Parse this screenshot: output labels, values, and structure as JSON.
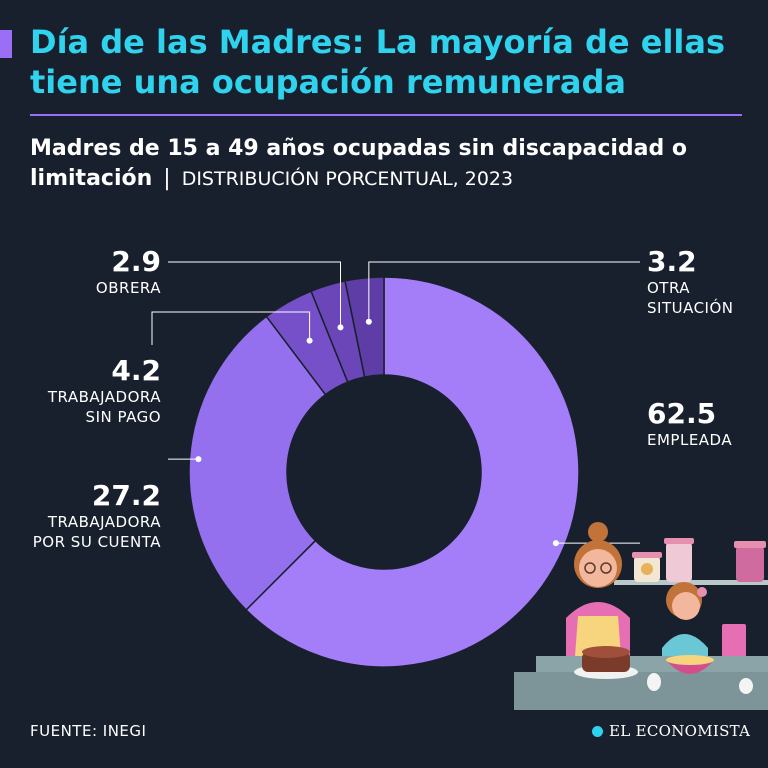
{
  "header": {
    "title": "Día de las Madres: La mayoría de ellas tiene una ocupación remunerada",
    "subtitle_bold": "Madres de 15 a 49 años ocupadas sin discapacidad o limitación",
    "separator": "|",
    "subtitle_light": "DISTRIBUCIÓN PORCENTUAL, 2023"
  },
  "chart_data": {
    "type": "pie",
    "variant": "donut",
    "title": "Madres de 15 a 49 años ocupadas sin discapacidad o limitación",
    "unit": "DISTRIBUCIÓN PORCENTUAL, 2023",
    "slices": [
      {
        "label": "EMPLEADA",
        "value": 62.5,
        "display": "62.5",
        "color": "#a47ef8"
      },
      {
        "label": "TRABAJADORA\nPOR SU CUENTA",
        "value": 27.2,
        "display": "27.2",
        "color": "#9570ee"
      },
      {
        "label": "TRABAJADORA\nSIN PAGO",
        "value": 4.2,
        "display": "4.2",
        "color": "#7550c8"
      },
      {
        "label": "OBRERA",
        "value": 2.9,
        "display": "2.9",
        "color": "#6a46b8"
      },
      {
        "label": "OTRA\nSITUACIÓN",
        "value": 3.2,
        "display": "3.2",
        "color": "#5e3da6"
      }
    ]
  },
  "footer": {
    "source": "FUENTE: INEGI",
    "brand": "EL ECONOMISTA"
  },
  "colors": {
    "background": "#19202d",
    "title": "#2fd3ee",
    "accent": "#9b6ff5"
  }
}
